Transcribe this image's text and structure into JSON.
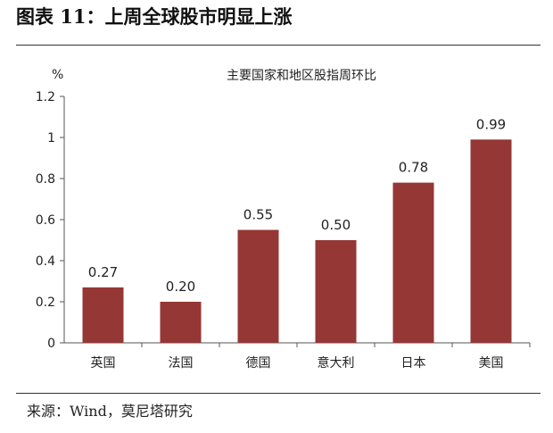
{
  "figure_title": "图表 11：上周全球股市明显上涨",
  "source_text": "来源：Wind，莫尼塔研究",
  "chart_data": {
    "type": "bar",
    "title": "主要国家和地区股指周环比",
    "unit_label": "%",
    "xlabel": "",
    "ylabel": "",
    "categories": [
      "英国",
      "法国",
      "德国",
      "意大利",
      "日本",
      "美国"
    ],
    "values": [
      0.27,
      0.2,
      0.55,
      0.5,
      0.78,
      0.99
    ],
    "data_labels": [
      "0.27",
      "0.20",
      "0.55",
      "0.50",
      "0.78",
      "0.99"
    ],
    "ylim": [
      0,
      1.2
    ],
    "yticks": [
      0,
      0.2,
      0.4,
      0.6,
      0.8,
      1,
      1.2
    ],
    "ytick_labels": [
      "0",
      "0.2",
      "0.4",
      "0.6",
      "0.8",
      "1",
      "1.2"
    ],
    "grid": false,
    "legend": "none",
    "bar_color": "#953735"
  }
}
